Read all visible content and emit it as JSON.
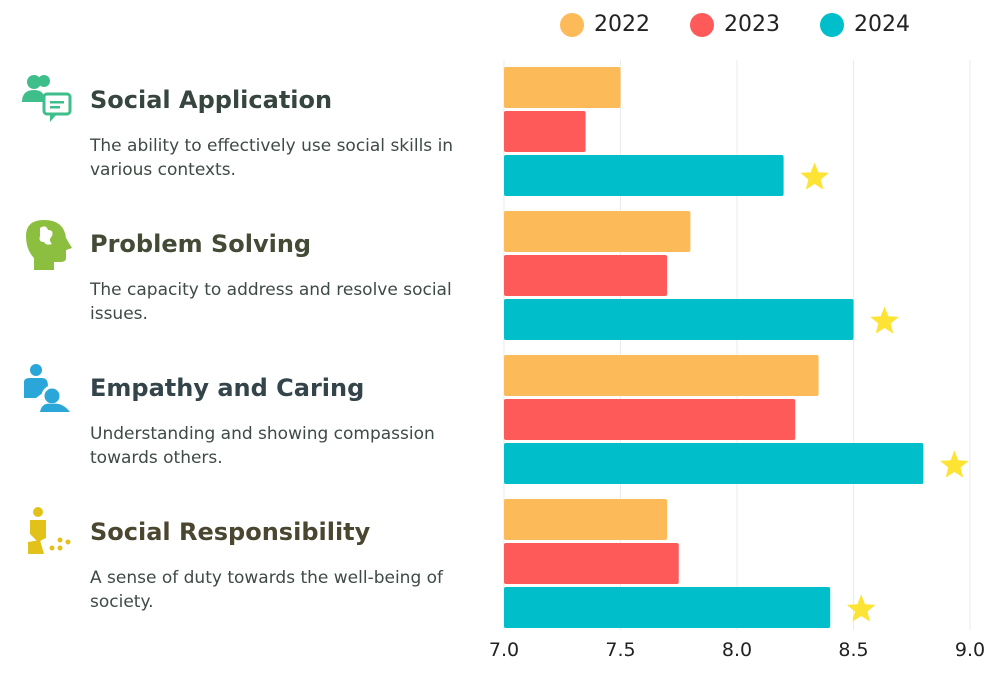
{
  "chart_data": {
    "type": "bar",
    "orientation": "horizontal",
    "categories": [
      "Social Application",
      "Problem Solving",
      "Empathy and Caring",
      "Social Responsibility"
    ],
    "series": [
      {
        "name": "2022",
        "color": "#FDBA58",
        "values": [
          7.5,
          7.8,
          8.35,
          7.7
        ]
      },
      {
        "name": "2023",
        "color": "#FF5A5A",
        "values": [
          7.35,
          7.7,
          8.25,
          7.75
        ]
      },
      {
        "name": "2024",
        "color": "#00BFCA",
        "values": [
          8.2,
          8.5,
          8.8,
          8.4
        ]
      }
    ],
    "xlim": [
      7.0,
      9.0
    ],
    "xticks": [
      "7.0",
      "7.5",
      "8.0",
      "8.5",
      "9.0"
    ],
    "grid": true,
    "legend": "top",
    "annotations": "star marker after each 2024 bar",
    "star_color": "#FDE334"
  },
  "categories": [
    {
      "title": "Social Application",
      "description": "The ability to effectively use social skills in various contexts.",
      "icon": "people-chat-icon",
      "color": "#3DBE8A",
      "title_color": "#36463F"
    },
    {
      "title": "Problem Solving",
      "description": "The capacity to address and resolve social issues.",
      "icon": "head-puzzle-icon",
      "color": "#8CBF3F",
      "title_color": "#434A36"
    },
    {
      "title": "Empathy and Caring",
      "description": "Understanding and showing compassion towards others.",
      "icon": "caring-person-icon",
      "color": "#2AA7D8",
      "title_color": "#33444A"
    },
    {
      "title": "Social Responsibility",
      "description": "A sense of duty towards the well-being of society.",
      "icon": "person-sweeping-icon",
      "color": "#E2C21A",
      "title_color": "#4A4630"
    }
  ]
}
